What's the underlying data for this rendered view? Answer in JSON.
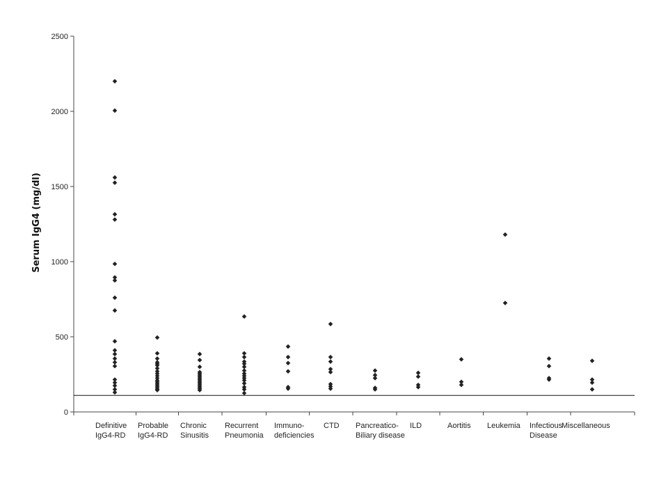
{
  "chart_data": {
    "type": "scatter",
    "title": "",
    "xlabel": "",
    "ylabel": "Serum IgG4 (mg/dl)",
    "ylim": [
      0,
      2500
    ],
    "yticks": [
      0,
      500,
      1000,
      1500,
      2000,
      2500
    ],
    "grid": false,
    "reference_line": 110,
    "marker_color": "#222222",
    "categories": [
      {
        "label": [
          "Definitive",
          "IgG4-RD"
        ],
        "values": [
          2200,
          2005,
          1560,
          1525,
          1315,
          1280,
          985,
          895,
          875,
          760,
          675,
          470,
          410,
          385,
          355,
          330,
          305,
          215,
          195,
          175,
          150,
          130
        ]
      },
      {
        "label": [
          "Probable",
          "IgG4-RD"
        ],
        "values": [
          495,
          390,
          355,
          330,
          320,
          310,
          290,
          270,
          255,
          240,
          225,
          210,
          200,
          190,
          180,
          170,
          160,
          150,
          145
        ]
      },
      {
        "label": [
          "Chronic",
          "Sinusitis"
        ],
        "values": [
          385,
          345,
          300,
          265,
          255,
          245,
          235,
          225,
          215,
          205,
          195,
          185,
          175,
          165,
          155,
          145
        ]
      },
      {
        "label": [
          "Recurrent",
          "Pneumonia"
        ],
        "values": [
          635,
          390,
          365,
          335,
          320,
          300,
          275,
          255,
          240,
          225,
          210,
          190,
          165,
          150,
          125
        ]
      },
      {
        "label": [
          "Immuno-",
          "deficiencies"
        ],
        "values": [
          435,
          365,
          325,
          270,
          165,
          155
        ]
      },
      {
        "label": [
          "CTD"
        ],
        "values": [
          585,
          365,
          335,
          285,
          265,
          185,
          170,
          155
        ]
      },
      {
        "label": [
          "Pancreatico-",
          "Biliary disease"
        ],
        "values": [
          275,
          245,
          225,
          160,
          150
        ]
      },
      {
        "label": [
          "ILD"
        ],
        "values": [
          260,
          235,
          180,
          165
        ]
      },
      {
        "label": [
          "Aortitis"
        ],
        "values": [
          350,
          200,
          180
        ]
      },
      {
        "label": [
          "Leukemia"
        ],
        "values": [
          1180,
          725
        ]
      },
      {
        "label": [
          "Infectious",
          "Disease"
        ],
        "values": [
          355,
          305,
          225,
          215
        ]
      },
      {
        "label": [
          "Miscellaneous"
        ],
        "values": [
          340,
          215,
          195,
          150
        ]
      }
    ]
  }
}
